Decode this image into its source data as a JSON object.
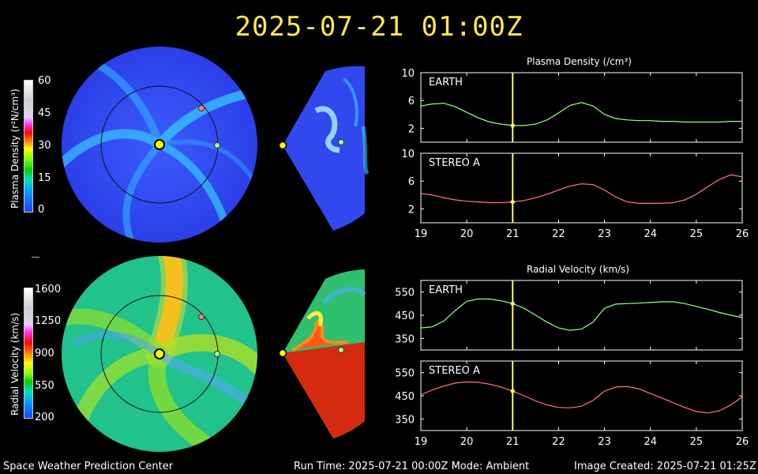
{
  "header": {
    "datetime": "2025-07-21  01:00Z"
  },
  "footer": {
    "left": "Space Weather Prediction Center",
    "center": "Run Time: 2025-07-21 00:00Z  Mode: Ambient",
    "right": "Image Created: 2025-07-21 01:25Z"
  },
  "colorbars": {
    "density": {
      "label": "Plasma Density (r²N/cm³)",
      "ticks": [
        "60",
        "45",
        "30",
        "15",
        "0"
      ]
    },
    "velocity": {
      "label": "Radial Velocity (km/s)",
      "ticks": [
        "1600",
        "1250",
        "900",
        "550",
        "200"
      ]
    }
  },
  "colors": {
    "earth": "#9dff8a",
    "stereo_a": "#ff7a7a",
    "marker": "#ffff55",
    "sun": "#ffff00"
  },
  "chart_data": [
    {
      "type": "line",
      "title": "Plasma Density (/cm³)",
      "panel_label": "EARTH",
      "x": [
        19,
        19.25,
        19.5,
        19.75,
        20,
        20.25,
        20.5,
        20.75,
        21,
        21.25,
        21.5,
        21.75,
        22,
        22.25,
        22.5,
        22.75,
        23,
        23.25,
        23.5,
        23.75,
        24,
        24.25,
        24.5,
        24.75,
        25,
        25.25,
        25.5,
        25.75,
        26
      ],
      "y": [
        5.2,
        5.5,
        5.6,
        5.1,
        4.3,
        3.5,
        2.9,
        2.6,
        2.4,
        2.4,
        2.6,
        3.2,
        4.2,
        5.3,
        5.7,
        5.2,
        4.0,
        3.4,
        3.2,
        3.1,
        3.1,
        3.0,
        3.0,
        2.9,
        2.9,
        2.9,
        2.9,
        3.0,
        3.0
      ],
      "xlim": [
        19,
        26
      ],
      "ylim": [
        0,
        10
      ],
      "yticks": [
        "10",
        "6",
        "2"
      ],
      "xticks": []
    },
    {
      "type": "line",
      "panel_label": "STEREO A",
      "x": [
        19,
        19.25,
        19.5,
        19.75,
        20,
        20.25,
        20.5,
        20.75,
        21,
        21.25,
        21.5,
        21.75,
        22,
        22.25,
        22.5,
        22.75,
        23,
        23.25,
        23.5,
        23.75,
        24,
        24.25,
        24.5,
        24.75,
        25,
        25.25,
        25.5,
        25.75,
        26
      ],
      "y": [
        4.2,
        4.0,
        3.6,
        3.3,
        3.1,
        3.0,
        2.9,
        2.9,
        3.0,
        3.2,
        3.6,
        4.1,
        4.7,
        5.3,
        5.6,
        5.5,
        4.7,
        3.7,
        3.0,
        2.8,
        2.8,
        2.8,
        2.9,
        3.3,
        4.1,
        5.2,
        6.2,
        6.9,
        6.6
      ],
      "xlim": [
        19,
        26
      ],
      "ylim": [
        0,
        10
      ],
      "yticks": [
        "10",
        "6",
        "2"
      ],
      "xticks": [
        "19",
        "20",
        "21",
        "22",
        "23",
        "24",
        "25",
        "26"
      ]
    },
    {
      "type": "line",
      "title": "Radial Velocity (km/s)",
      "panel_label": "EARTH",
      "x": [
        19,
        19.25,
        19.5,
        19.75,
        20,
        20.25,
        20.5,
        20.75,
        21,
        21.25,
        21.5,
        21.75,
        22,
        22.25,
        22.5,
        22.75,
        23,
        23.25,
        23.5,
        23.75,
        24,
        24.25,
        24.5,
        24.75,
        25,
        25.25,
        25.5,
        25.75,
        26
      ],
      "y": [
        395,
        400,
        425,
        470,
        510,
        520,
        520,
        512,
        500,
        480,
        450,
        420,
        395,
        385,
        390,
        420,
        480,
        498,
        500,
        502,
        505,
        508,
        508,
        500,
        488,
        476,
        462,
        450,
        440
      ],
      "xlim": [
        19,
        26
      ],
      "ylim": [
        300,
        600
      ],
      "yticks": [
        "550",
        "450",
        "350"
      ],
      "xticks": []
    },
    {
      "type": "line",
      "panel_label": "STEREO A",
      "x": [
        19,
        19.25,
        19.5,
        19.75,
        20,
        20.25,
        20.5,
        20.75,
        21,
        21.25,
        21.5,
        21.75,
        22,
        22.25,
        22.5,
        22.75,
        23,
        23.25,
        23.5,
        23.75,
        24,
        24.25,
        24.5,
        24.75,
        25,
        25.25,
        25.5,
        25.75,
        26
      ],
      "y": [
        455,
        475,
        492,
        505,
        510,
        508,
        500,
        487,
        470,
        450,
        428,
        410,
        400,
        398,
        405,
        430,
        470,
        488,
        490,
        480,
        460,
        440,
        420,
        400,
        382,
        376,
        385,
        410,
        445
      ],
      "xlim": [
        19,
        26
      ],
      "ylim": [
        300,
        600
      ],
      "yticks": [
        "550",
        "450",
        "350"
      ],
      "xticks": [
        "19",
        "20",
        "21",
        "22",
        "23",
        "24",
        "25",
        "26"
      ]
    }
  ],
  "current_x": 21
}
